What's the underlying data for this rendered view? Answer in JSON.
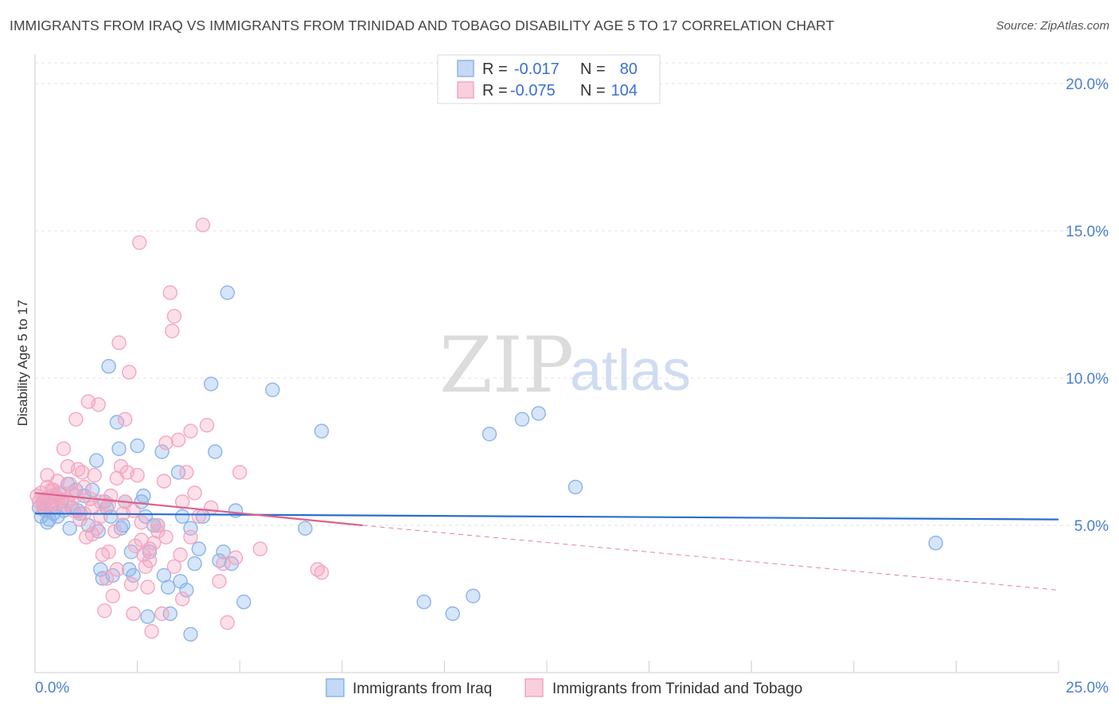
{
  "title": "IMMIGRANTS FROM IRAQ VS IMMIGRANTS FROM TRINIDAD AND TOBAGO DISABILITY AGE 5 TO 17 CORRELATION CHART",
  "source": "Source: ZipAtlas.com",
  "watermark": {
    "zip": "ZIP",
    "atlas": "atlas"
  },
  "legend": {
    "rows": [
      {
        "r_label": "R =",
        "r_value": "-0.017",
        "n_label": "N =",
        "n_value": "80"
      },
      {
        "r_label": "R =",
        "r_value": "-0.075",
        "n_label": "N =",
        "n_value": "104"
      }
    ]
  },
  "chart_data": {
    "type": "scatter",
    "title": "IMMIGRANTS FROM IRAQ VS IMMIGRANTS FROM TRINIDAD AND TOBAGO DISABILITY AGE 5 TO 17 CORRELATION CHART",
    "xlabel": "",
    "ylabel": "Disability Age 5 to 17",
    "xlim": [
      0,
      25
    ],
    "ylim": [
      0,
      21
    ],
    "x_tick_labels": [
      "0.0%",
      "25.0%"
    ],
    "y_ticks": [
      5,
      10,
      15,
      20
    ],
    "y_tick_labels": [
      "5.0%",
      "10.0%",
      "15.0%",
      "20.0%"
    ],
    "grid": true,
    "legend_position": "top-center",
    "series": [
      {
        "name": "Immigrants from Iraq",
        "color": "#8ab4ea",
        "line_color": "#2a6dd0",
        "r": -0.017,
        "n": 80,
        "trend": {
          "x": [
            0,
            25
          ],
          "y": [
            5.4,
            5.2
          ]
        },
        "points": [
          [
            0.1,
            5.6
          ],
          [
            0.15,
            5.3
          ],
          [
            0.2,
            5.8
          ],
          [
            0.25,
            5.5
          ],
          [
            0.3,
            5.9
          ],
          [
            0.35,
            5.2
          ],
          [
            0.4,
            5.7
          ],
          [
            0.45,
            5.4
          ],
          [
            0.5,
            6.0
          ],
          [
            0.55,
            5.3
          ],
          [
            0.6,
            6.1
          ],
          [
            0.65,
            5.8
          ],
          [
            0.7,
            5.5
          ],
          [
            0.8,
            6.4
          ],
          [
            0.85,
            4.9
          ],
          [
            0.9,
            5.6
          ],
          [
            1.0,
            6.2
          ],
          [
            1.05,
            5.5
          ],
          [
            1.1,
            5.4
          ],
          [
            1.2,
            6.0
          ],
          [
            1.3,
            5.0
          ],
          [
            1.4,
            6.2
          ],
          [
            1.5,
            7.2
          ],
          [
            1.55,
            4.8
          ],
          [
            1.6,
            3.5
          ],
          [
            1.65,
            3.2
          ],
          [
            1.7,
            5.8
          ],
          [
            1.75,
            5.6
          ],
          [
            1.8,
            10.4
          ],
          [
            1.85,
            5.3
          ],
          [
            1.9,
            3.3
          ],
          [
            2.0,
            8.5
          ],
          [
            2.05,
            7.6
          ],
          [
            2.1,
            4.9
          ],
          [
            2.15,
            5.0
          ],
          [
            2.2,
            5.8
          ],
          [
            2.3,
            3.5
          ],
          [
            2.35,
            4.1
          ],
          [
            2.4,
            3.3
          ],
          [
            2.5,
            7.7
          ],
          [
            2.6,
            5.8
          ],
          [
            2.65,
            6.0
          ],
          [
            2.7,
            5.3
          ],
          [
            2.75,
            1.9
          ],
          [
            2.8,
            4.1
          ],
          [
            2.9,
            5.0
          ],
          [
            3.0,
            5.0
          ],
          [
            3.1,
            7.5
          ],
          [
            3.15,
            3.3
          ],
          [
            3.25,
            2.9
          ],
          [
            3.3,
            2.0
          ],
          [
            3.5,
            6.8
          ],
          [
            3.55,
            3.1
          ],
          [
            3.6,
            5.3
          ],
          [
            3.7,
            2.8
          ],
          [
            3.8,
            4.9
          ],
          [
            3.9,
            3.7
          ],
          [
            4.0,
            4.2
          ],
          [
            4.1,
            5.3
          ],
          [
            4.3,
            9.8
          ],
          [
            4.4,
            7.5
          ],
          [
            4.5,
            3.8
          ],
          [
            4.6,
            4.1
          ],
          [
            4.7,
            12.9
          ],
          [
            4.8,
            3.7
          ],
          [
            4.9,
            5.5
          ],
          [
            5.1,
            2.4
          ],
          [
            5.8,
            9.6
          ],
          [
            7.0,
            8.2
          ],
          [
            6.6,
            4.9
          ],
          [
            9.5,
            2.4
          ],
          [
            10.2,
            2.0
          ],
          [
            10.7,
            2.6
          ],
          [
            11.1,
            8.1
          ],
          [
            11.9,
            8.6
          ],
          [
            12.3,
            8.8
          ],
          [
            13.2,
            6.3
          ],
          [
            22.0,
            4.4
          ],
          [
            3.8,
            1.3
          ],
          [
            0.3,
            5.1
          ]
        ]
      },
      {
        "name": "Immigrants from Trinidad and Tobago",
        "color": "#f4a6c0",
        "line_color": "#e0608a",
        "r": -0.075,
        "n": 104,
        "trend_solid": {
          "x": [
            0,
            8
          ],
          "y": [
            6.1,
            5.0
          ]
        },
        "trend_dashed": {
          "x": [
            8,
            25
          ],
          "y": [
            5.0,
            2.8
          ]
        },
        "points": [
          [
            0.05,
            6.0
          ],
          [
            0.1,
            5.8
          ],
          [
            0.15,
            6.1
          ],
          [
            0.2,
            5.7
          ],
          [
            0.25,
            5.9
          ],
          [
            0.3,
            6.3
          ],
          [
            0.35,
            5.6
          ],
          [
            0.4,
            6.0
          ],
          [
            0.45,
            6.2
          ],
          [
            0.5,
            5.8
          ],
          [
            0.55,
            6.5
          ],
          [
            0.6,
            5.9
          ],
          [
            0.65,
            6.1
          ],
          [
            0.7,
            7.6
          ],
          [
            0.75,
            5.7
          ],
          [
            0.8,
            7.0
          ],
          [
            0.85,
            6.4
          ],
          [
            0.9,
            6.1
          ],
          [
            0.95,
            5.5
          ],
          [
            1.0,
            8.6
          ],
          [
            1.05,
            6.9
          ],
          [
            1.1,
            5.2
          ],
          [
            1.15,
            6.8
          ],
          [
            1.2,
            6.3
          ],
          [
            1.25,
            4.6
          ],
          [
            1.3,
            9.2
          ],
          [
            1.35,
            5.9
          ],
          [
            1.4,
            5.6
          ],
          [
            1.45,
            6.7
          ],
          [
            1.5,
            4.9
          ],
          [
            1.55,
            9.1
          ],
          [
            1.6,
            5.3
          ],
          [
            1.65,
            4.0
          ],
          [
            1.7,
            2.1
          ],
          [
            1.75,
            3.2
          ],
          [
            1.8,
            5.7
          ],
          [
            1.85,
            6.0
          ],
          [
            1.9,
            2.6
          ],
          [
            1.95,
            4.8
          ],
          [
            2.0,
            3.5
          ],
          [
            2.05,
            11.2
          ],
          [
            2.1,
            7.0
          ],
          [
            2.15,
            5.4
          ],
          [
            2.2,
            8.6
          ],
          [
            2.25,
            6.8
          ],
          [
            2.3,
            10.2
          ],
          [
            2.35,
            3.0
          ],
          [
            2.4,
            5.5
          ],
          [
            2.45,
            4.3
          ],
          [
            2.5,
            6.7
          ],
          [
            2.55,
            14.6
          ],
          [
            2.6,
            5.1
          ],
          [
            2.65,
            4.0
          ],
          [
            2.7,
            3.6
          ],
          [
            2.75,
            2.9
          ],
          [
            2.8,
            4.2
          ],
          [
            2.85,
            1.4
          ],
          [
            2.9,
            4.4
          ],
          [
            3.0,
            5.0
          ],
          [
            3.1,
            2.0
          ],
          [
            3.15,
            6.5
          ],
          [
            3.2,
            7.8
          ],
          [
            3.3,
            12.9
          ],
          [
            3.35,
            11.6
          ],
          [
            3.4,
            12.1
          ],
          [
            3.5,
            7.9
          ],
          [
            3.55,
            4.0
          ],
          [
            3.6,
            5.8
          ],
          [
            3.7,
            6.8
          ],
          [
            3.8,
            8.2
          ],
          [
            3.9,
            6.1
          ],
          [
            4.0,
            5.3
          ],
          [
            4.1,
            15.2
          ],
          [
            4.2,
            8.4
          ],
          [
            4.3,
            5.6
          ],
          [
            4.5,
            3.1
          ],
          [
            4.6,
            3.7
          ],
          [
            4.7,
            1.7
          ],
          [
            4.9,
            3.9
          ],
          [
            5.0,
            6.8
          ],
          [
            5.5,
            4.2
          ],
          [
            6.9,
            3.5
          ],
          [
            7.0,
            3.4
          ],
          [
            0.2,
            5.6
          ],
          [
            0.3,
            6.7
          ],
          [
            0.4,
            6.2
          ],
          [
            0.6,
            5.9
          ],
          [
            0.8,
            5.8
          ],
          [
            1.0,
            6.0
          ],
          [
            1.2,
            5.4
          ],
          [
            1.4,
            4.7
          ],
          [
            1.6,
            5.8
          ],
          [
            1.8,
            4.1
          ],
          [
            2.0,
            6.6
          ],
          [
            2.2,
            5.8
          ],
          [
            2.4,
            2.0
          ],
          [
            2.6,
            4.5
          ],
          [
            2.8,
            3.8
          ],
          [
            3.0,
            4.8
          ],
          [
            3.2,
            4.6
          ],
          [
            3.4,
            3.6
          ],
          [
            3.6,
            2.5
          ],
          [
            3.8,
            4.6
          ],
          [
            0.5,
            5.7
          ]
        ]
      }
    ]
  }
}
